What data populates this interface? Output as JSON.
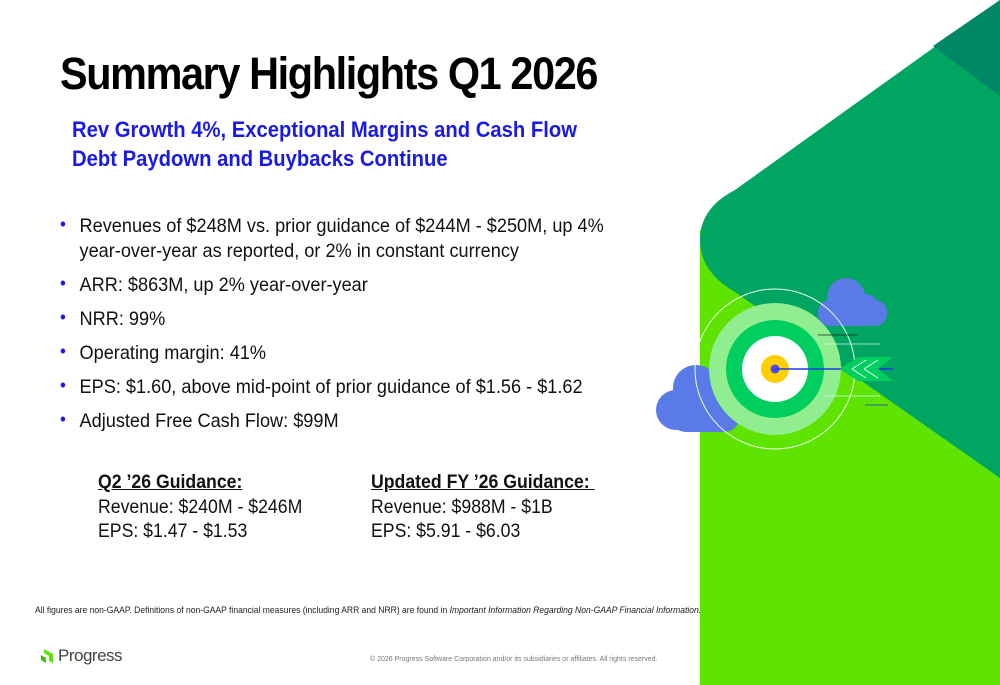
{
  "title": "Summary Highlights Q1 2026",
  "subtitles": [
    "Rev Growth 4%, Exceptional Margins and Cash Flow",
    "Debt Paydown and Buybacks Continue"
  ],
  "bullets": [
    "Revenues of $248M vs. prior guidance of $244M - $250M, up 4% year-over-year as reported, or 2% in constant currency",
    "ARR: $863M, up 2% year-over-year",
    "NRR: 99%",
    "Operating margin: 41%",
    "EPS: $1.60, above mid-point of prior guidance of $1.56 - $1.62",
    "Adjusted Free Cash Flow: $99M"
  ],
  "bullet_glyph": "•",
  "guidance_q2": {
    "heading": "Q2 ’26 Guidance:",
    "revenue": "Revenue: $240M - $246M",
    "eps": "EPS: $1.47 - $1.53"
  },
  "guidance_fy": {
    "heading": "Updated FY ’26 Guidance: ",
    "revenue": "Revenue: $988M - $1B",
    "eps": "EPS: $5.91 - $6.03"
  },
  "footnote": {
    "text": "All figures are non-GAAP. Definitions of non-GAAP financial measures (including ARR and NRR) are found in ",
    "italic": "Important Information Regarding Non-GAAP Financial Information."
  },
  "logo": "Progress",
  "copyright": "© 2026 Progress Software Corporation and/or its subsidiaries or affiliates. All rights reserved.",
  "colors": {
    "accent_blue": "#1a1ae6",
    "lime": "#5ee400",
    "green": "#00a562",
    "dark_green": "#008866"
  }
}
